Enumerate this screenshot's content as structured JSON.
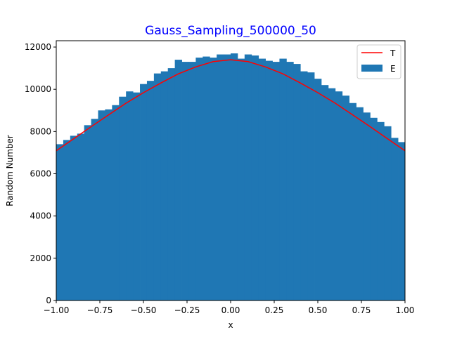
{
  "chart_data": {
    "type": "bar",
    "title": "Gauss_Sampling_500000_50",
    "title_color": "#0000ff",
    "xlabel": "x",
    "ylabel": "Random Number",
    "xlim": [
      -1.0,
      1.0
    ],
    "ylim": [
      0,
      12300
    ],
    "x_ticks": [
      -1.0,
      -0.75,
      -0.5,
      -0.25,
      0.0,
      0.25,
      0.5,
      0.75,
      1.0
    ],
    "x_tick_labels": [
      "−1.00",
      "−0.75",
      "−0.50",
      "−0.25",
      "0.00",
      "0.25",
      "0.50",
      "0.75",
      "1.00"
    ],
    "y_ticks": [
      0,
      2000,
      4000,
      6000,
      8000,
      10000,
      12000
    ],
    "y_tick_labels": [
      "0",
      "2000",
      "4000",
      "6000",
      "8000",
      "10000",
      "12000"
    ],
    "grid": false,
    "legend_position": "top-right",
    "legend": [
      {
        "label": "T",
        "kind": "line",
        "color": "#ff0000"
      },
      {
        "label": "E",
        "kind": "patch",
        "color": "#1f77b4"
      }
    ],
    "series": [
      {
        "name": "E",
        "kind": "histogram",
        "color": "#1f77b4",
        "bin_edges_range": [
          -1.0,
          1.0
        ],
        "bin_count": 50,
        "values": [
          7400,
          7600,
          7800,
          7900,
          8300,
          8600,
          9000,
          9050,
          9250,
          9650,
          9900,
          9850,
          10250,
          10400,
          10750,
          10850,
          11000,
          11400,
          11300,
          11300,
          11500,
          11550,
          11500,
          11650,
          11650,
          11700,
          11450,
          11650,
          11600,
          11450,
          11350,
          11300,
          11450,
          11300,
          11200,
          10850,
          10800,
          10500,
          10200,
          10050,
          9900,
          9700,
          9350,
          9150,
          8900,
          8650,
          8450,
          8250,
          7700,
          7500
        ]
      },
      {
        "name": "T",
        "kind": "line",
        "color": "#ff0000",
        "x": [
          -1.0,
          -0.9,
          -0.8,
          -0.7,
          -0.6,
          -0.5,
          -0.4,
          -0.3,
          -0.2,
          -0.1,
          0.0,
          0.1,
          0.2,
          0.3,
          0.4,
          0.5,
          0.6,
          0.7,
          0.8,
          0.9,
          1.0
        ],
        "y": [
          7090,
          7660,
          8230,
          8790,
          9340,
          9840,
          10300,
          10730,
          11060,
          11310,
          11400,
          11310,
          11060,
          10730,
          10300,
          9840,
          9340,
          8790,
          8230,
          7660,
          7090
        ]
      }
    ]
  }
}
